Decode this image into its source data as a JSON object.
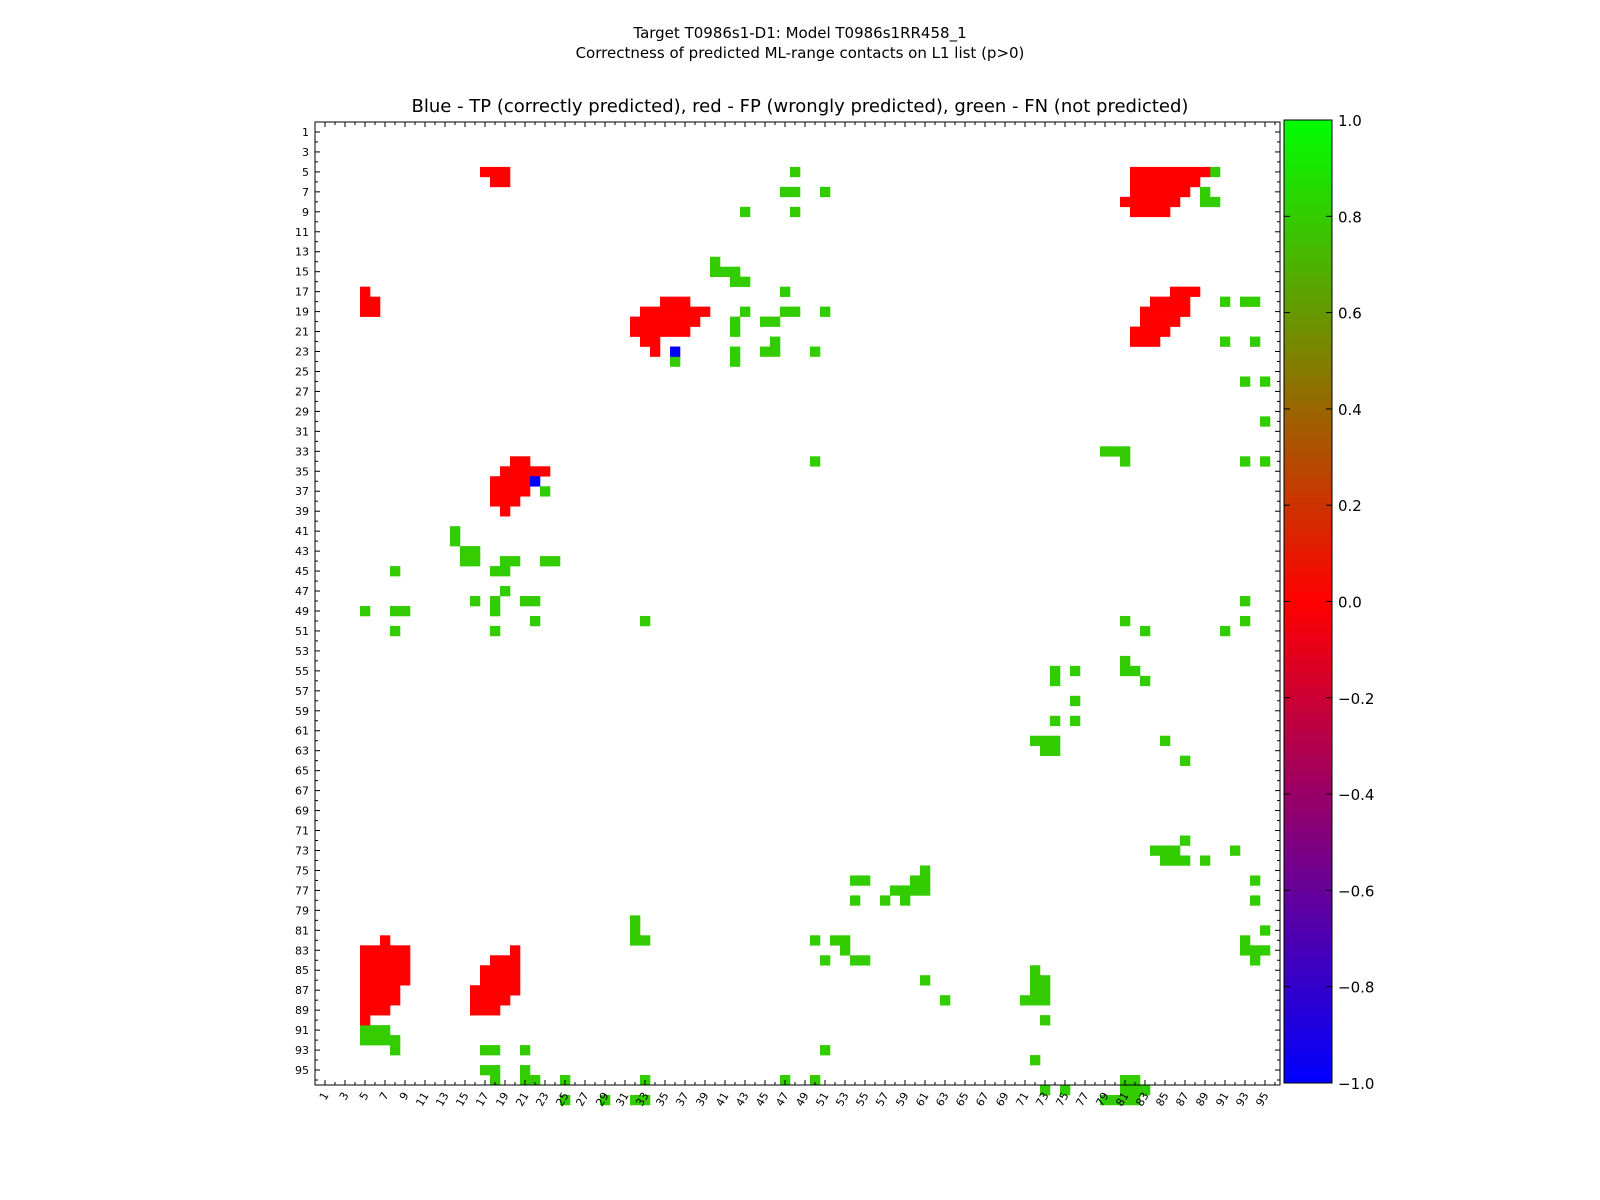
{
  "figure": {
    "suptitle_line1": "Target T0986s1-D1: Model T0986s1RR458_1",
    "suptitle_line2": "Correctness of predicted ML-range contacts on L1 list (p>0)"
  },
  "chart_data": {
    "type": "heatmap",
    "title": "Blue - TP (correctly predicted), red - FP (wrongly predicted), green - FN (not predicted)",
    "xlabel": "",
    "ylabel": "",
    "xlim": [
      1,
      96
    ],
    "ylim": [
      1,
      96
    ],
    "y_axis_inverted": true,
    "x_tick_labels": [
      "1",
      "3",
      "5",
      "7",
      "9",
      "11",
      "13",
      "15",
      "17",
      "19",
      "21",
      "23",
      "25",
      "27",
      "29",
      "31",
      "33",
      "35",
      "37",
      "39",
      "41",
      "43",
      "45",
      "47",
      "49",
      "51",
      "53",
      "55",
      "57",
      "59",
      "61",
      "63",
      "65",
      "67",
      "69",
      "71",
      "73",
      "75",
      "77",
      "79",
      "81",
      "83",
      "85",
      "87",
      "89",
      "91",
      "93",
      "95"
    ],
    "y_tick_labels": [
      "1",
      "3",
      "5",
      "7",
      "9",
      "11",
      "13",
      "15",
      "17",
      "19",
      "21",
      "23",
      "25",
      "27",
      "29",
      "31",
      "33",
      "35",
      "37",
      "39",
      "41",
      "43",
      "45",
      "47",
      "49",
      "51",
      "53",
      "55",
      "57",
      "59",
      "61",
      "63",
      "65",
      "67",
      "69",
      "71",
      "73",
      "75",
      "77",
      "79",
      "81",
      "83",
      "85",
      "87",
      "89",
      "91",
      "93",
      "95"
    ],
    "legend": "colorbar-right",
    "colorbar": {
      "min": -1.0,
      "max": 1.0,
      "tick_labels": [
        "1.0",
        "0.8",
        "0.6",
        "0.4",
        "0.2",
        "0.0",
        "−0.2",
        "−0.4",
        "−0.6",
        "−0.8",
        "−1.0"
      ],
      "stops": [
        "#0000ff",
        "#ff0000",
        "#00ff00"
      ]
    },
    "colors": {
      "TP": "#0000ff",
      "FP": "#ff0000",
      "FN": "#33cc00"
    },
    "cells": {
      "FP": [
        "5:17-19",
        "6:18-19",
        "5:82-89",
        "6:82-88",
        "7:82-87",
        "8:81-86",
        "9:82-85",
        "17:5",
        "18:5-6",
        "19:5-6",
        "17:86-88",
        "18:84-87",
        "19:83-87",
        "20:83-86",
        "21:82-85",
        "22:82-84",
        "18:35-37",
        "19:33-39",
        "20:32-38",
        "21:32-37",
        "22:33-34",
        "23:34",
        "34:20-21",
        "35:19-23",
        "36:18-21",
        "37:18-21",
        "38:18-20",
        "39:19",
        "82:7",
        "83:5-9",
        "84:5-9",
        "85:5-9",
        "86:5-9",
        "87:5-8",
        "88:5-8",
        "89:5-7",
        "90:5",
        "83:20",
        "84:18-20",
        "85:17-20",
        "86:17-20",
        "87:16-20",
        "88:16-19",
        "89:16-18"
      ],
      "TP": [
        "23:36",
        "36:22"
      ],
      "FN": [
        "5:48",
        "5:90",
        "7:47-48",
        "7:51",
        "7:89",
        "8:89-90",
        "9:43",
        "9:48",
        "14:40",
        "15:40-42",
        "16:42-43",
        "17:47",
        "18:91",
        "18:93-94",
        "19:43",
        "19:47-48",
        "19:51",
        "20:42",
        "20:45-46",
        "21:42",
        "22:46",
        "22:91",
        "22:94",
        "23:42",
        "23:45-46",
        "23:50",
        "24:36",
        "24:42",
        "26:93",
        "26:95",
        "30:95",
        "33:79-81",
        "34:50",
        "34:81",
        "34:93",
        "34:95",
        "37:23",
        "41:14",
        "42:14",
        "43:15-16",
        "44:15-16",
        "44:19-20",
        "44:23-24",
        "45:8",
        "45:18-19",
        "47:19",
        "48:16",
        "48:18",
        "48:21-22",
        "48:93",
        "49:5",
        "49:8-9",
        "49:18",
        "50:22",
        "50:33",
        "50:81",
        "50:93",
        "51:8",
        "51:18",
        "51:83",
        "51:91",
        "54:81",
        "55:74",
        "55:76",
        "55:81-82",
        "56:74",
        "56:83",
        "58:76",
        "60:74",
        "60:76",
        "62:72-74",
        "63:73-74",
        "62:85",
        "64:87",
        "72:87",
        "73:84-86",
        "74:85-87",
        "73:92",
        "74:89",
        "75:61",
        "76:60-61",
        "76:94",
        "76:54-55",
        "77:58-61",
        "78:54",
        "78:57",
        "78:59",
        "78:94",
        "80:32",
        "81:32",
        "82:32-33",
        "82:50",
        "82:52-53",
        "83:53",
        "84:51",
        "84:54-55",
        "81:95",
        "82:93",
        "83:93-95",
        "84:94",
        "85:72",
        "86:61",
        "86:72-73",
        "87:72-73",
        "88:63",
        "88:71-73",
        "90:73",
        "91:5-7",
        "92:5-8",
        "93:8",
        "93:17-18",
        "93:21",
        "93:51",
        "94:72",
        "95:17-18",
        "95:21",
        "96:18",
        "96:21-22",
        "96:25",
        "96:33",
        "96:47",
        "96:50",
        "96:81-82",
        "97:73",
        "97:75",
        "97:81-83",
        "98:25",
        "98:29",
        "98:32-33",
        "98:79-82"
      ]
    }
  }
}
